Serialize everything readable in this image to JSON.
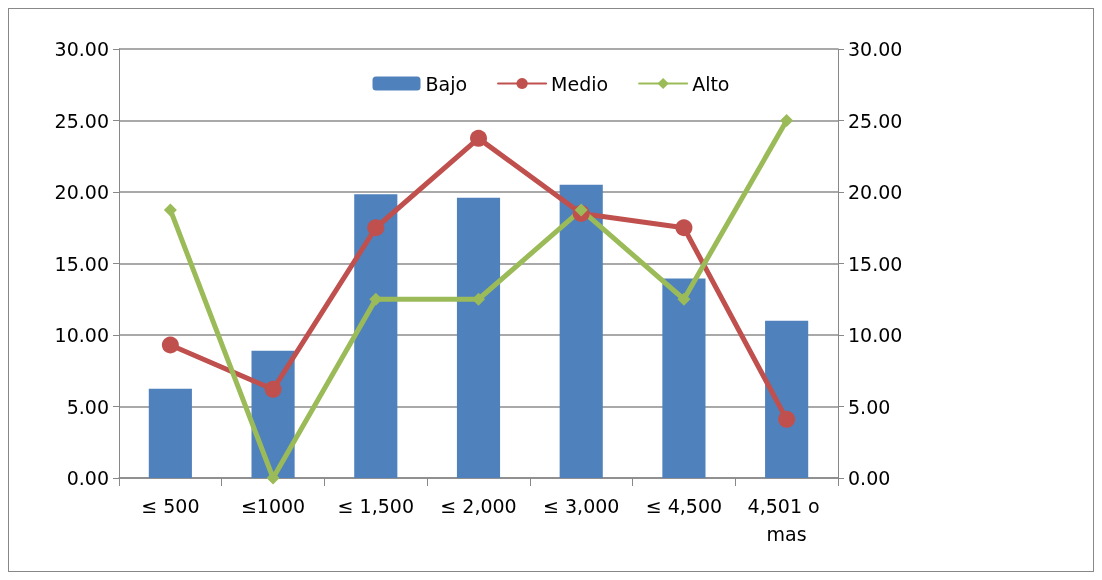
{
  "chart_data": {
    "type": "bar",
    "categories": [
      "≤ 500",
      "≤1000",
      "≤ 1,500",
      "≤ 2,000",
      "≤ 3,000",
      "≤ 4,500",
      "4,501 o mas"
    ],
    "series": [
      {
        "name": "Bajo",
        "color": "#4f81bd",
        "values": [
          6.25,
          8.9,
          19.85,
          19.6,
          20.5,
          13.95,
          11.0
        ]
      },
      {
        "name": "Medio",
        "type": "line",
        "marker": "circle",
        "color": "#c0504d",
        "values": [
          9.3,
          6.2,
          17.5,
          23.75,
          18.5,
          17.5,
          4.1
        ]
      },
      {
        "name": "Alto",
        "type": "line",
        "marker": "diamond",
        "color": "#9bbb59",
        "values": [
          18.75,
          0,
          12.5,
          12.5,
          18.75,
          12.5,
          25
        ]
      }
    ],
    "ylim": [
      0,
      30
    ],
    "yticks": [
      {
        "value": 0,
        "label": "0.00"
      },
      {
        "value": 5,
        "label": "5.00"
      },
      {
        "value": 10,
        "label": "10.00"
      },
      {
        "value": 15,
        "label": "15.00"
      },
      {
        "value": 20,
        "label": "20.00"
      },
      {
        "value": 25,
        "label": "25.00"
      },
      {
        "value": 30,
        "label": "30.00"
      }
    ],
    "y2lim": [
      0,
      30
    ],
    "y2ticks": [
      {
        "value": 0,
        "label": "0.00"
      },
      {
        "value": 5,
        "label": "5.00"
      },
      {
        "value": 10,
        "label": "10.00"
      },
      {
        "value": 15,
        "label": "15.00"
      },
      {
        "value": 20,
        "label": "20.00"
      },
      {
        "value": 25,
        "label": "25.00"
      },
      {
        "value": 30,
        "label": "30.00"
      }
    ],
    "grid": "y",
    "legend": "top",
    "line_style": "solid"
  }
}
